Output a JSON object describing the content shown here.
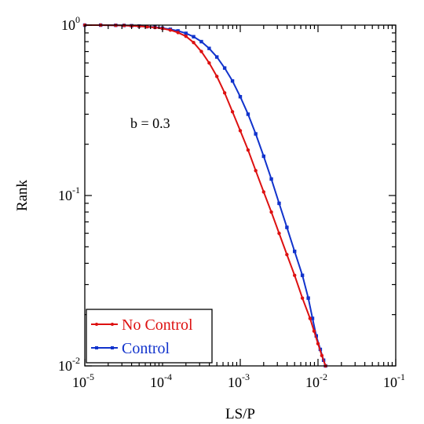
{
  "chart_data": {
    "type": "line",
    "xlabel": "LS/P",
    "ylabel": "Rank",
    "xscale": "log",
    "yscale": "log",
    "xlim": [
      1e-05,
      0.1
    ],
    "ylim": [
      0.01,
      1
    ],
    "x_ticks": [
      {
        "base": "10",
        "exp": "-5",
        "value": 1e-05
      },
      {
        "base": "10",
        "exp": "-4",
        "value": 0.0001
      },
      {
        "base": "10",
        "exp": "-3",
        "value": 0.001
      },
      {
        "base": "10",
        "exp": "-2",
        "value": 0.01
      },
      {
        "base": "10",
        "exp": "-1",
        "value": 0.1
      }
    ],
    "y_ticks": [
      {
        "base": "10",
        "exp": "0",
        "value": 1
      },
      {
        "base": "10",
        "exp": "-1",
        "value": 0.1
      },
      {
        "base": "10",
        "exp": "-2",
        "value": 0.01
      }
    ],
    "annotation": "b = 0.3",
    "legend_position": "bottom-left",
    "grid": false,
    "series": [
      {
        "name": "No Control",
        "color": "#dd1111",
        "marker": "circle",
        "points": [
          [
            1e-05,
            1.0
          ],
          [
            1.6e-05,
            1.0
          ],
          [
            2.5e-05,
            0.997
          ],
          [
            3.2e-05,
            0.995
          ],
          [
            4e-05,
            0.99
          ],
          [
            5e-05,
            0.985
          ],
          [
            6.3e-05,
            0.978
          ],
          [
            8e-05,
            0.968
          ],
          [
            0.0001,
            0.955
          ],
          [
            0.000126,
            0.935
          ],
          [
            0.000158,
            0.905
          ],
          [
            0.0002,
            0.86
          ],
          [
            0.000251,
            0.79
          ],
          [
            0.000316,
            0.7
          ],
          [
            0.000398,
            0.6
          ],
          [
            0.0005,
            0.5
          ],
          [
            0.00063,
            0.4
          ],
          [
            0.000794,
            0.31
          ],
          [
            0.001,
            0.24
          ],
          [
            0.00126,
            0.185
          ],
          [
            0.00158,
            0.14
          ],
          [
            0.002,
            0.105
          ],
          [
            0.00251,
            0.08
          ],
          [
            0.00316,
            0.06
          ],
          [
            0.00398,
            0.045
          ],
          [
            0.005,
            0.034
          ],
          [
            0.0063,
            0.025
          ],
          [
            0.0079,
            0.019
          ],
          [
            0.0089,
            0.016
          ],
          [
            0.01,
            0.0135
          ],
          [
            0.0112,
            0.0115
          ],
          [
            0.0125,
            0.01
          ]
        ]
      },
      {
        "name": "Control",
        "color": "#1133cc",
        "marker": "square",
        "points": [
          [
            1e-05,
            1.0
          ],
          [
            1.6e-05,
            1.0
          ],
          [
            2.5e-05,
            0.998
          ],
          [
            3.2e-05,
            0.996
          ],
          [
            4e-05,
            0.992
          ],
          [
            5e-05,
            0.987
          ],
          [
            6.3e-05,
            0.98
          ],
          [
            8e-05,
            0.972
          ],
          [
            0.0001,
            0.96
          ],
          [
            0.000126,
            0.945
          ],
          [
            0.000158,
            0.925
          ],
          [
            0.0002,
            0.895
          ],
          [
            0.000251,
            0.855
          ],
          [
            0.000316,
            0.8
          ],
          [
            0.000398,
            0.73
          ],
          [
            0.0005,
            0.65
          ],
          [
            0.00063,
            0.56
          ],
          [
            0.000794,
            0.47
          ],
          [
            0.001,
            0.38
          ],
          [
            0.00126,
            0.3
          ],
          [
            0.00158,
            0.23
          ],
          [
            0.002,
            0.17
          ],
          [
            0.00251,
            0.125
          ],
          [
            0.00316,
            0.09
          ],
          [
            0.00398,
            0.065
          ],
          [
            0.005,
            0.047
          ],
          [
            0.0063,
            0.034
          ],
          [
            0.0075,
            0.025
          ],
          [
            0.0085,
            0.019
          ],
          [
            0.0095,
            0.015
          ],
          [
            0.0107,
            0.0125
          ],
          [
            0.0118,
            0.0108
          ],
          [
            0.0125,
            0.01
          ]
        ]
      }
    ]
  }
}
